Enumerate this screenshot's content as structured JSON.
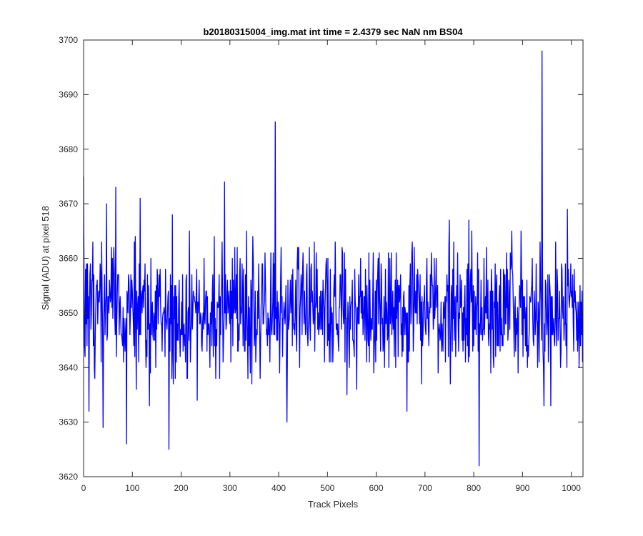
{
  "chart_data": {
    "type": "line",
    "title": "b20180315004_img.mat int time = 2.4379 sec  NaN nm BS04",
    "xlabel": "Track Pixels",
    "ylabel": "Signal (ADU) at pixel 518",
    "xlim": [
      0,
      1024
    ],
    "ylim": [
      3620,
      3700
    ],
    "xticks": [
      0,
      100,
      200,
      300,
      400,
      500,
      600,
      700,
      800,
      900,
      1000
    ],
    "yticks": [
      3620,
      3630,
      3640,
      3650,
      3660,
      3670,
      3680,
      3690,
      3700
    ],
    "grid": false,
    "series": [
      {
        "color": "#0000ff",
        "x_start": 0,
        "x_step": 1,
        "mean": 3650,
        "noise_std": 6,
        "num_points": 1024,
        "extremes": [
          {
            "x": 0,
            "y": 3675
          },
          {
            "x": 11,
            "y": 3632
          },
          {
            "x": 40,
            "y": 3629
          },
          {
            "x": 47,
            "y": 3670
          },
          {
            "x": 66,
            "y": 3673
          },
          {
            "x": 88,
            "y": 3626
          },
          {
            "x": 116,
            "y": 3671
          },
          {
            "x": 175,
            "y": 3625
          },
          {
            "x": 289,
            "y": 3674
          },
          {
            "x": 393,
            "y": 3685
          },
          {
            "x": 417,
            "y": 3630
          },
          {
            "x": 750,
            "y": 3667
          },
          {
            "x": 790,
            "y": 3667
          },
          {
            "x": 811,
            "y": 3622
          },
          {
            "x": 940,
            "y": 3698
          },
          {
            "x": 944,
            "y": 3633
          },
          {
            "x": 992,
            "y": 3669
          }
        ]
      }
    ]
  }
}
